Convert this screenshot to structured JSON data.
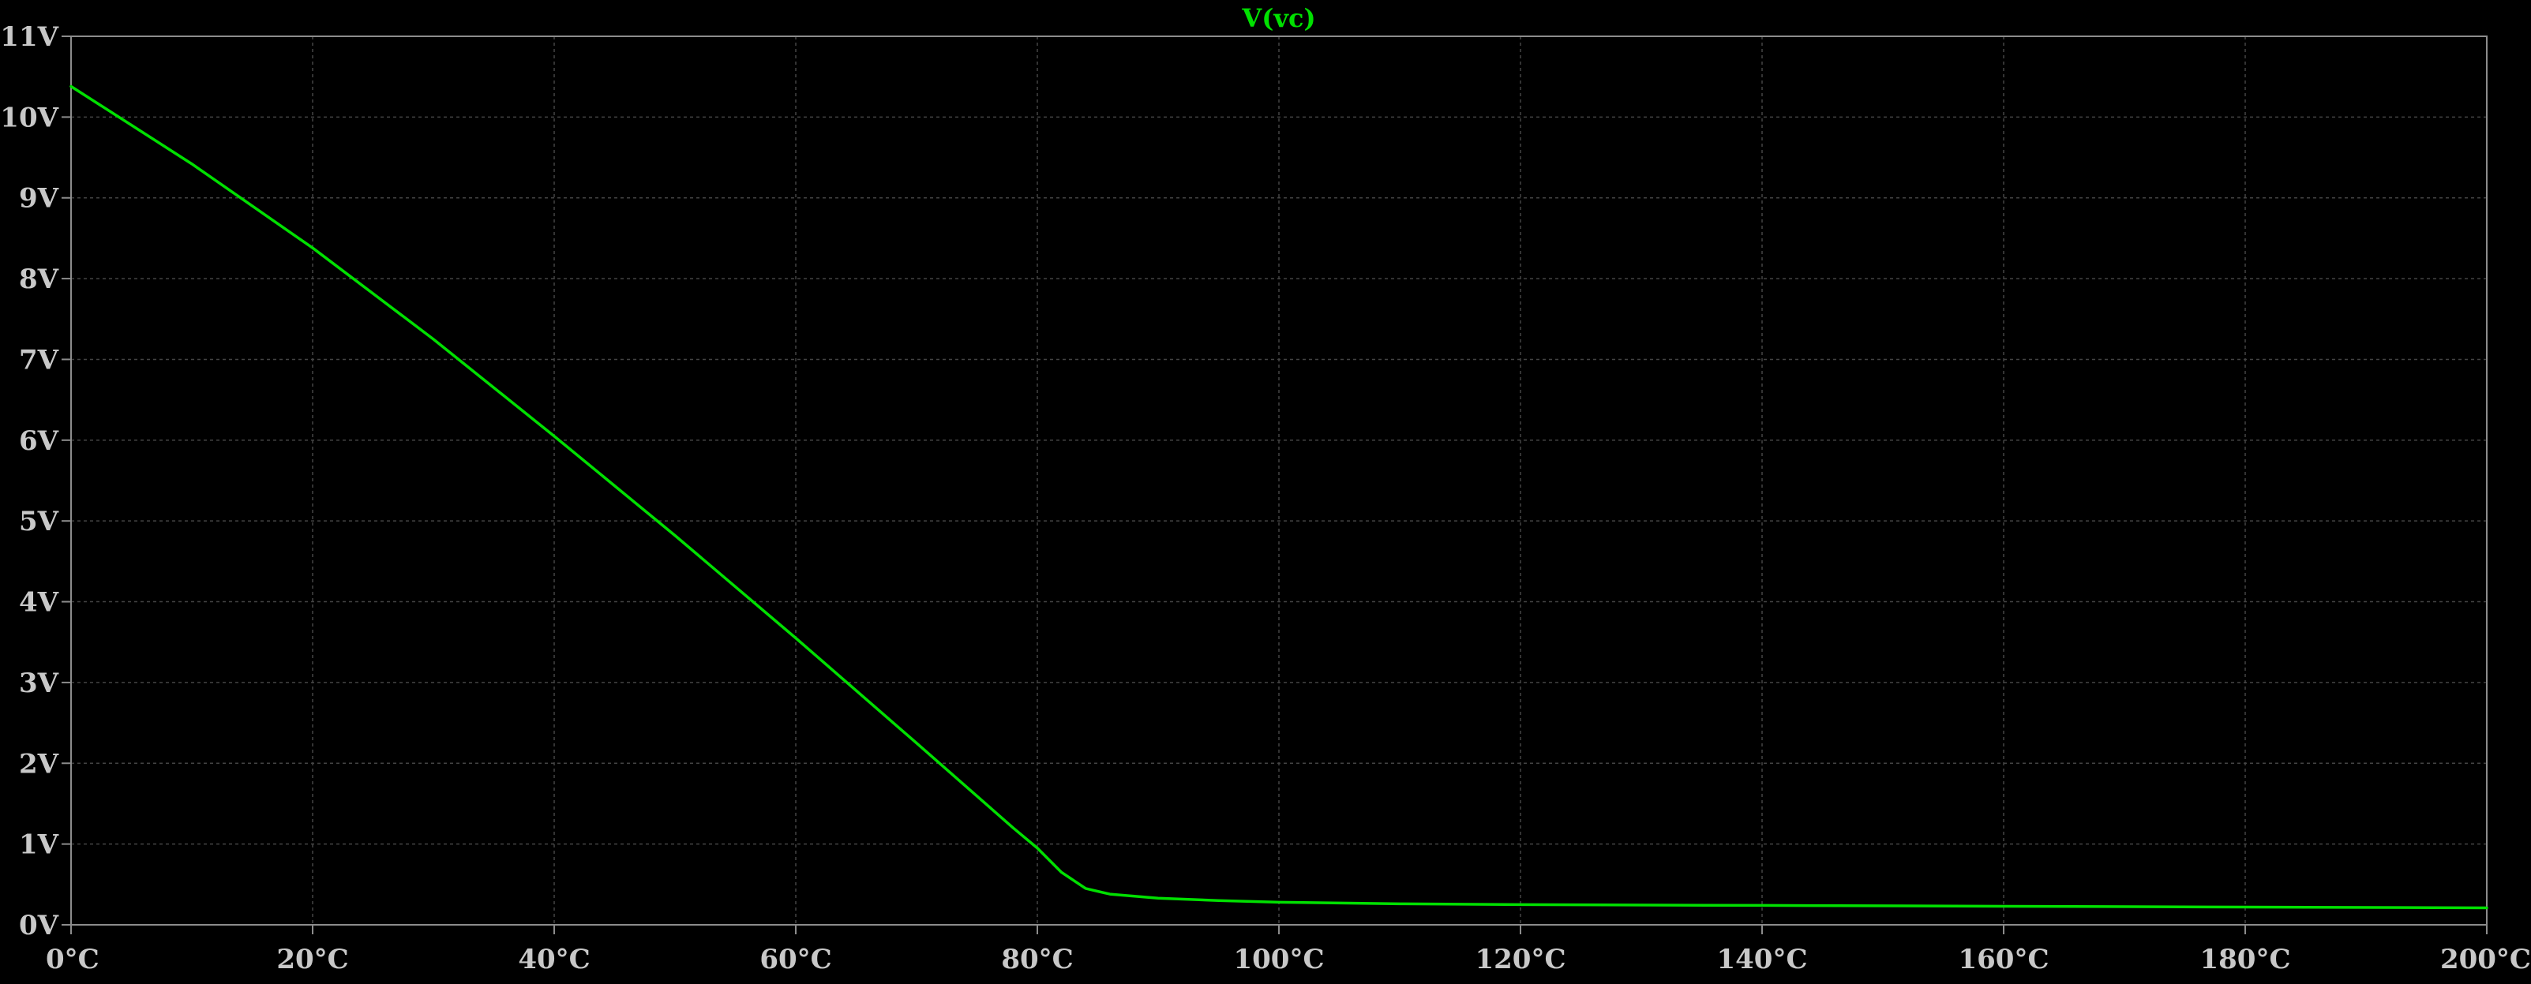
{
  "chart_data": {
    "type": "line",
    "title": "V(vc)",
    "xlim": [
      0,
      200
    ],
    "ylim": [
      0,
      11
    ],
    "x_ticks": [
      "0°C",
      "20°C",
      "40°C",
      "60°C",
      "80°C",
      "100°C",
      "120°C",
      "140°C",
      "160°C",
      "180°C",
      "200°C"
    ],
    "y_ticks": [
      "0V",
      "1V",
      "2V",
      "3V",
      "4V",
      "5V",
      "6V",
      "7V",
      "8V",
      "9V",
      "10V",
      "11V"
    ],
    "x_tick_values": [
      0,
      20,
      40,
      60,
      80,
      100,
      120,
      140,
      160,
      180,
      200
    ],
    "y_tick_values": [
      0,
      1,
      2,
      3,
      4,
      5,
      6,
      7,
      8,
      9,
      10,
      11
    ],
    "grid": true,
    "series": [
      {
        "name": "V(vc)",
        "color": "#00e000",
        "x": [
          0,
          10,
          20,
          30,
          40,
          50,
          60,
          70,
          78,
          80,
          82,
          84,
          86,
          90,
          95,
          100,
          110,
          120,
          140,
          160,
          180,
          200
        ],
        "y": [
          10.38,
          9.42,
          8.38,
          7.25,
          6.05,
          4.82,
          3.55,
          2.25,
          1.2,
          0.95,
          0.65,
          0.45,
          0.38,
          0.33,
          0.3,
          0.28,
          0.26,
          0.25,
          0.24,
          0.23,
          0.22,
          0.21
        ]
      }
    ]
  },
  "colors": {
    "background": "#000000",
    "axis": "#8c8c8c",
    "grid": "#444444",
    "label": "#c8c8c8",
    "trace": "#00e000"
  }
}
